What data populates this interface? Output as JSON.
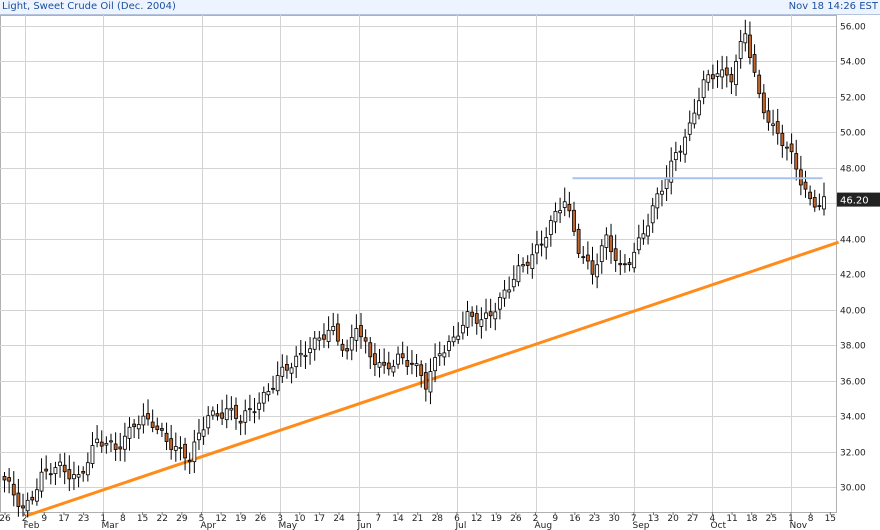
{
  "header": {
    "instrument": "Light, Sweet Crude Oil (Dec. 2004)",
    "timestamp": "Nov 18 14:26 EST"
  },
  "colors": {
    "background": "#ffffff",
    "grid": "#d3d3d3",
    "up_candle_fill": "#ffffff",
    "down_candle_fill": "#c0652d",
    "candle_outline": "#000000",
    "trendline": "#ff8c1a",
    "resistance": "#a9c4e8",
    "last_price_box": "#222222",
    "header_text": "#1a4f9c"
  },
  "chart_data": {
    "type": "candlestick",
    "title": "Light, Sweet Crude Oil (Dec. 2004)",
    "ylim": [
      28.6,
      56.6
    ],
    "y_ticks": [
      "30.00",
      "32.00",
      "34.00",
      "36.00",
      "38.00",
      "40.00",
      "42.00",
      "44.00",
      "46.00",
      "48.00",
      "50.00",
      "52.00",
      "54.00",
      "56.00"
    ],
    "x_tick_labels": [
      "26",
      "2",
      "9",
      "17",
      "23",
      "1",
      "8",
      "15",
      "22",
      "29",
      "5",
      "12",
      "19",
      "26",
      "3",
      "10",
      "17",
      "24",
      "1",
      "7",
      "14",
      "21",
      "28",
      "6",
      "12",
      "19",
      "26",
      "2",
      "9",
      "16",
      "23",
      "30",
      "7",
      "13",
      "20",
      "27",
      "4",
      "11",
      "18",
      "25",
      "1",
      "8",
      "15"
    ],
    "months": [
      {
        "label": "Feb",
        "tick_index": 1
      },
      {
        "label": "Mar",
        "tick_index": 5
      },
      {
        "label": "Apr",
        "tick_index": 10
      },
      {
        "label": "May",
        "tick_index": 14
      },
      {
        "label": "Jun",
        "tick_index": 18
      },
      {
        "label": "Jul",
        "tick_index": 23
      },
      {
        "label": "Aug",
        "tick_index": 27
      },
      {
        "label": "Sep",
        "tick_index": 32
      },
      {
        "label": "Oct",
        "tick_index": 36
      },
      {
        "label": "Nov",
        "tick_index": 40
      }
    ],
    "last_price": "46.20",
    "anchors": [
      [
        0,
        30.2
      ],
      [
        4,
        28.8
      ],
      [
        8,
        30.6
      ],
      [
        12,
        31.0
      ],
      [
        16,
        30.7
      ],
      [
        20,
        32.4
      ],
      [
        24,
        32.3
      ],
      [
        28,
        33.6
      ],
      [
        32,
        33.5
      ],
      [
        36,
        32.6
      ],
      [
        40,
        31.4
      ],
      [
        44,
        34.2
      ],
      [
        48,
        34.3
      ],
      [
        51,
        33.6
      ],
      [
        55,
        35.0
      ],
      [
        58,
        35.8
      ],
      [
        62,
        36.8
      ],
      [
        65,
        37.9
      ],
      [
        68,
        38.4
      ],
      [
        71,
        38.6
      ],
      [
        74,
        37.6
      ],
      [
        76,
        39.4
      ],
      [
        79,
        37.2
      ],
      [
        82,
        36.5
      ],
      [
        85,
        37.5
      ],
      [
        88,
        37.0
      ],
      [
        91,
        35.6
      ],
      [
        94,
        37.8
      ],
      [
        97,
        38.4
      ],
      [
        100,
        39.4
      ],
      [
        103,
        39.4
      ],
      [
        106,
        40.3
      ],
      [
        109,
        41.2
      ],
      [
        112,
        42.4
      ],
      [
        115,
        43.6
      ],
      [
        118,
        44.8
      ],
      [
        121,
        46.0
      ],
      [
        124,
        43.6
      ],
      [
        127,
        42.2
      ],
      [
        130,
        43.8
      ],
      [
        133,
        42.3
      ],
      [
        136,
        43.4
      ],
      [
        139,
        44.8
      ],
      [
        142,
        46.8
      ],
      [
        145,
        49.0
      ],
      [
        148,
        50.2
      ],
      [
        151,
        52.6
      ],
      [
        154,
        53.6
      ],
      [
        157,
        53.2
      ],
      [
        160,
        55.4
      ],
      [
        163,
        52.0
      ],
      [
        166,
        50.4
      ],
      [
        169,
        49.0
      ],
      [
        172,
        47.2
      ],
      [
        174,
        46.2
      ]
    ],
    "trendline": {
      "x0": 0,
      "y0": 28.4,
      "x1": 174,
      "y1": 43.8
    },
    "resistance": {
      "x0": 123,
      "x1": 177,
      "y": 47.4
    }
  }
}
